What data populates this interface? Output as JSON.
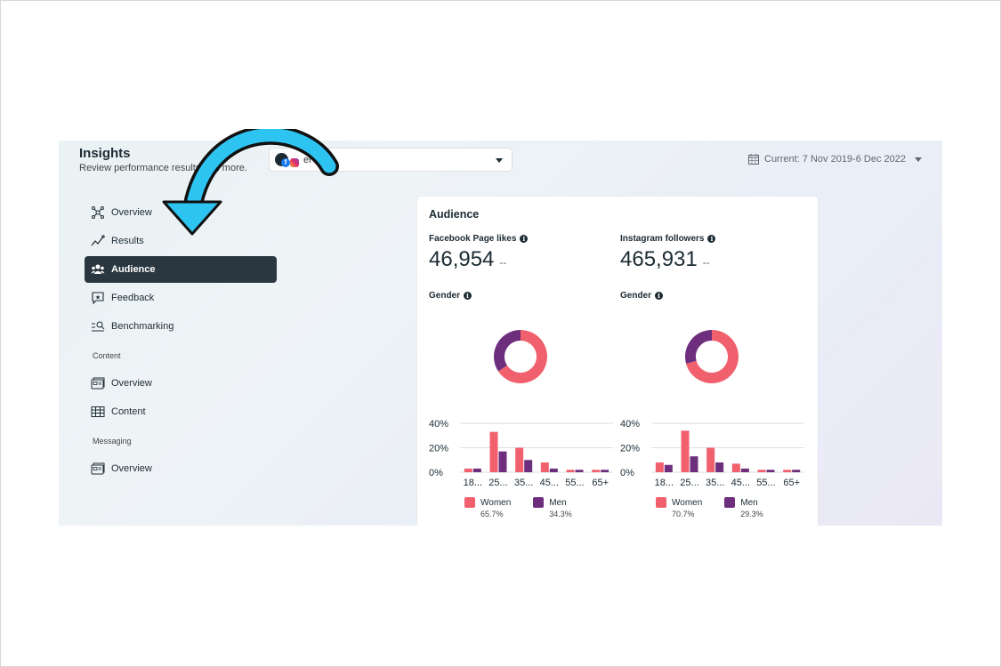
{
  "header": {
    "title": "Insights",
    "subtitle": "Review performance results and more.",
    "account_name": "er",
    "date_range": "Current: 7 Nov 2019-6 Dec 2022"
  },
  "nav": {
    "items": [
      {
        "label": "Overview",
        "icon": "network-icon"
      },
      {
        "label": "Results",
        "icon": "trend-icon"
      },
      {
        "label": "Audience",
        "icon": "people-icon",
        "active": true
      },
      {
        "label": "Feedback",
        "icon": "speech-bubble-icon"
      },
      {
        "label": "Benchmarking",
        "icon": "search-list-icon"
      }
    ],
    "content_section": "Content",
    "content_items": [
      {
        "label": "Overview",
        "icon": "cards-icon"
      },
      {
        "label": "Content",
        "icon": "table-icon"
      }
    ],
    "messaging_section": "Messaging",
    "messaging_items": [
      {
        "label": "Overview",
        "icon": "cards-icon"
      }
    ]
  },
  "audience": {
    "title": "Audience",
    "facebook": {
      "label": "Facebook Page likes",
      "value": "46,954",
      "delta": "--",
      "gender_label": "Gender"
    },
    "instagram": {
      "label": "Instagram followers",
      "value": "465,931",
      "delta": "--",
      "gender_label": "Gender"
    },
    "legend": {
      "women": "Women",
      "men": "Men"
    }
  },
  "colors": {
    "women": "#f0606d",
    "men": "#6d2f7d",
    "active_nav": "#2a3740",
    "arrow": "#2ec4f1"
  },
  "chart_data": [
    {
      "type": "pie",
      "title": "Gender",
      "categories": [
        "Women",
        "Men"
      ],
      "values": [
        65.7,
        34.3
      ],
      "labels": [
        "65.7%",
        "34.3%"
      ]
    },
    {
      "type": "bar",
      "categories": [
        "18...",
        "25...",
        "35...",
        "45...",
        "55...",
        "65+"
      ],
      "series": [
        {
          "name": "Women",
          "values": [
            3,
            33,
            20,
            8,
            2,
            2
          ]
        },
        {
          "name": "Men",
          "values": [
            3,
            17,
            10,
            3,
            2,
            2
          ]
        }
      ],
      "yticks": [
        "40%",
        "20%",
        "0%"
      ],
      "ylim": [
        0,
        40
      ]
    },
    {
      "type": "pie",
      "title": "Gender",
      "categories": [
        "Women",
        "Men"
      ],
      "values": [
        70.7,
        29.3
      ],
      "labels": [
        "70.7%",
        "29.3%"
      ]
    },
    {
      "type": "bar",
      "categories": [
        "18...",
        "25...",
        "35...",
        "45...",
        "55...",
        "65+"
      ],
      "series": [
        {
          "name": "Women",
          "values": [
            8,
            34,
            20,
            7,
            2,
            2
          ]
        },
        {
          "name": "Men",
          "values": [
            6,
            13,
            8,
            3,
            2,
            2
          ]
        }
      ],
      "yticks": [
        "40%",
        "20%",
        "0%"
      ],
      "ylim": [
        0,
        40
      ]
    }
  ]
}
